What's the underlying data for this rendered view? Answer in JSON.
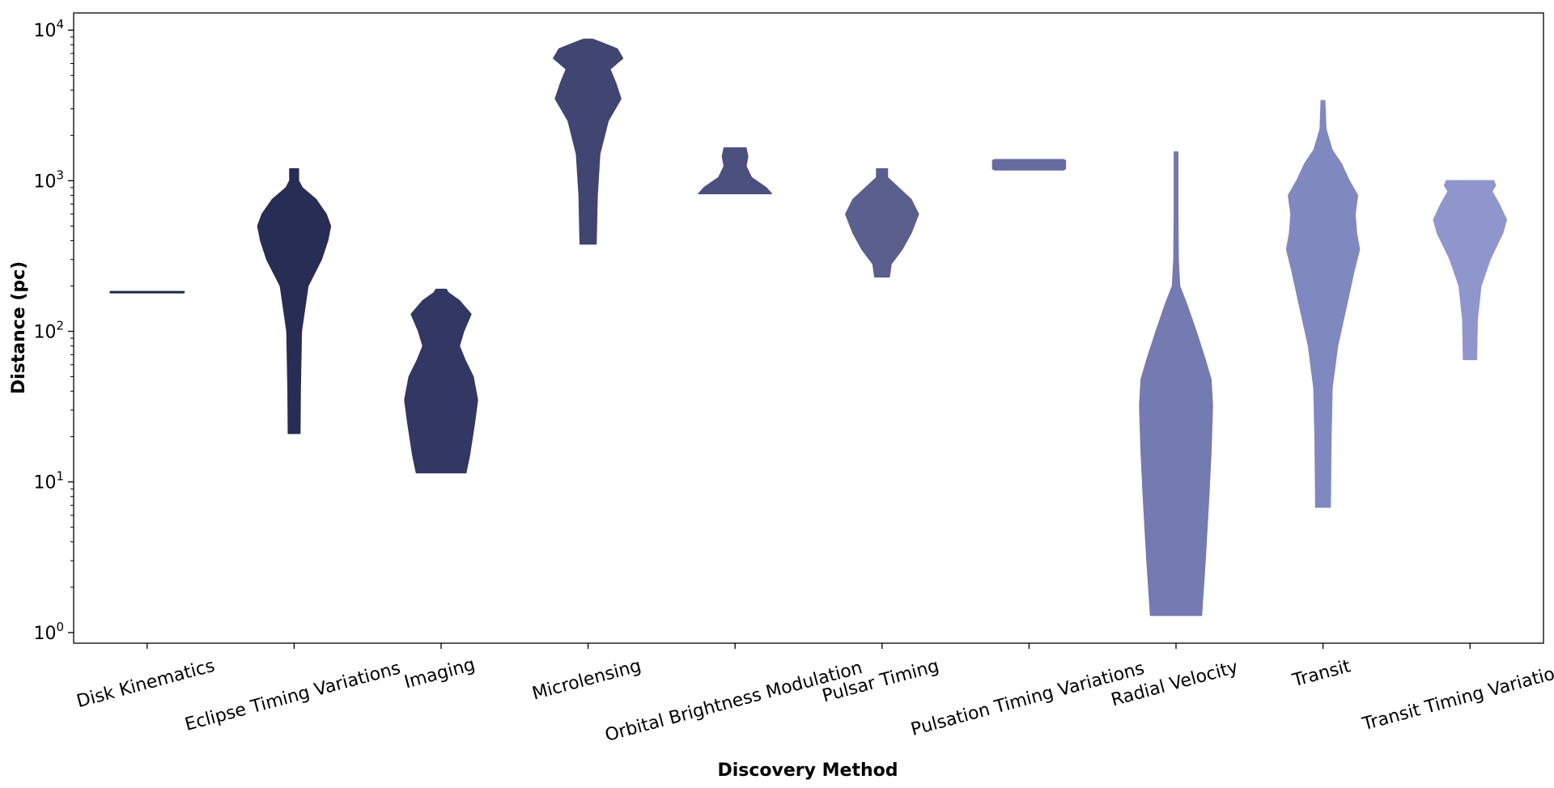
{
  "chart_data": {
    "type": "violin",
    "xlabel": "Discovery Method",
    "ylabel": "Distance (pc)",
    "yscale": "log",
    "ylim": [
      0.85,
      13000
    ],
    "yticks": [
      {
        "value": 1,
        "base": "10",
        "exp": "0"
      },
      {
        "value": 10,
        "base": "10",
        "exp": "1"
      },
      {
        "value": 100,
        "base": "10",
        "exp": "2"
      },
      {
        "value": 1000,
        "base": "10",
        "exp": "3"
      },
      {
        "value": 10000,
        "base": "10",
        "exp": "4"
      }
    ],
    "grid": false,
    "categories": [
      "Disk Kinematics",
      "Eclipse Timing Variations",
      "Imaging",
      "Microlensing",
      "Orbital Brightness Modulation",
      "Pulsar Timing",
      "Pulsation Timing Variations",
      "Radial Velocity",
      "Transit",
      "Transit Timing Variations"
    ],
    "series": [
      {
        "category": "Disk Kinematics",
        "color": "#1e2640",
        "profile": [
          [
            182,
            1.0
          ],
          [
            182,
            1.0
          ]
        ]
      },
      {
        "category": "Eclipse Timing Variations",
        "color": "#282d55",
        "profile": [
          [
            21,
            0.16
          ],
          [
            40,
            0.17
          ],
          [
            100,
            0.2
          ],
          [
            200,
            0.38
          ],
          [
            300,
            0.75
          ],
          [
            400,
            0.92
          ],
          [
            500,
            1.0
          ],
          [
            600,
            0.88
          ],
          [
            750,
            0.6
          ],
          [
            900,
            0.22
          ],
          [
            1000,
            0.12
          ],
          [
            1200,
            0.12
          ]
        ]
      },
      {
        "category": "Imaging",
        "color": "#333763",
        "profile": [
          [
            11.5,
            0.68
          ],
          [
            15,
            0.78
          ],
          [
            25,
            0.92
          ],
          [
            35,
            1.0
          ],
          [
            50,
            0.88
          ],
          [
            65,
            0.65
          ],
          [
            80,
            0.5
          ],
          [
            100,
            0.62
          ],
          [
            130,
            0.82
          ],
          [
            160,
            0.5
          ],
          [
            180,
            0.2
          ],
          [
            190,
            0.14
          ]
        ]
      },
      {
        "category": "Microlensing",
        "color": "#414571",
        "profile": [
          [
            380,
            0.22
          ],
          [
            800,
            0.25
          ],
          [
            1500,
            0.32
          ],
          [
            2500,
            0.55
          ],
          [
            3500,
            0.9
          ],
          [
            4500,
            0.75
          ],
          [
            5500,
            0.6
          ],
          [
            6500,
            0.95
          ],
          [
            7500,
            0.8
          ],
          [
            8300,
            0.35
          ],
          [
            8700,
            0.12
          ]
        ]
      },
      {
        "category": "Orbital Brightness Modulation",
        "color": "#4b507e",
        "profile": [
          [
            820,
            1.0
          ],
          [
            900,
            0.85
          ],
          [
            1050,
            0.45
          ],
          [
            1250,
            0.3
          ],
          [
            1450,
            0.35
          ],
          [
            1650,
            0.3
          ]
        ]
      },
      {
        "category": "Pulsar Timing",
        "color": "#5a5f8d",
        "profile": [
          [
            230,
            0.2
          ],
          [
            280,
            0.25
          ],
          [
            350,
            0.55
          ],
          [
            450,
            0.8
          ],
          [
            600,
            1.0
          ],
          [
            750,
            0.8
          ],
          [
            900,
            0.45
          ],
          [
            1050,
            0.15
          ],
          [
            1200,
            0.15
          ]
        ]
      },
      {
        "category": "Pulsation Timing Variations",
        "color": "#676ca0",
        "profile": [
          [
            1180,
            0.95
          ],
          [
            1200,
            1.0
          ],
          [
            1270,
            1.0
          ],
          [
            1360,
            1.0
          ],
          [
            1380,
            0.95
          ]
        ]
      },
      {
        "category": "Radial Velocity",
        "color": "#737bb0",
        "profile": [
          [
            1.3,
            0.7
          ],
          [
            3,
            0.8
          ],
          [
            8,
            0.9
          ],
          [
            16,
            0.96
          ],
          [
            32,
            1.0
          ],
          [
            48,
            0.96
          ],
          [
            65,
            0.8
          ],
          [
            100,
            0.55
          ],
          [
            150,
            0.3
          ],
          [
            200,
            0.1
          ],
          [
            300,
            0.06
          ],
          [
            600,
            0.05
          ],
          [
            1550,
            0.05
          ]
        ]
      },
      {
        "category": "Transit",
        "color": "#7f88bf",
        "profile": [
          [
            6.8,
            0.2
          ],
          [
            20,
            0.22
          ],
          [
            42,
            0.25
          ],
          [
            80,
            0.4
          ],
          [
            150,
            0.65
          ],
          [
            250,
            0.85
          ],
          [
            350,
            1.0
          ],
          [
            450,
            0.92
          ],
          [
            600,
            0.88
          ],
          [
            800,
            0.95
          ],
          [
            1000,
            0.72
          ],
          [
            1300,
            0.5
          ],
          [
            1600,
            0.25
          ],
          [
            2200,
            0.08
          ],
          [
            3400,
            0.05
          ]
        ]
      },
      {
        "category": "Transit Timing Variations",
        "color": "#8f96cc",
        "profile": [
          [
            65,
            0.18
          ],
          [
            120,
            0.2
          ],
          [
            200,
            0.3
          ],
          [
            300,
            0.55
          ],
          [
            450,
            0.9
          ],
          [
            550,
            1.0
          ],
          [
            700,
            0.8
          ],
          [
            850,
            0.6
          ],
          [
            930,
            0.7
          ],
          [
            1000,
            0.65
          ]
        ]
      }
    ]
  }
}
